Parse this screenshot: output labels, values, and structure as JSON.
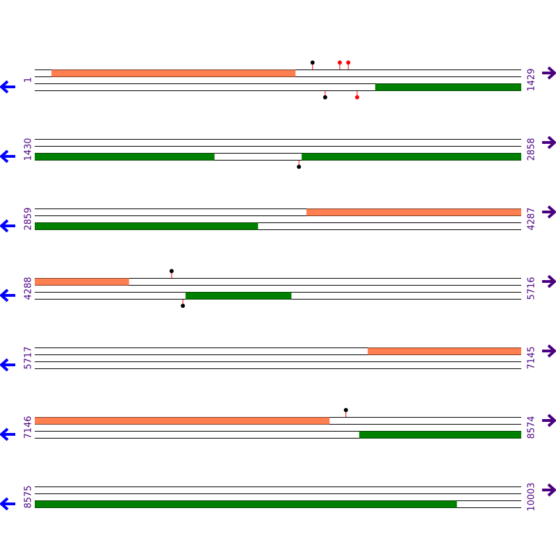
{
  "colors": {
    "forward": "#ff7f50",
    "reverse": "#008000",
    "label": "#4b0082",
    "left_arrow": "#0000ff",
    "right_arrow": "#4b0082"
  },
  "rows": [
    {
      "start": 1,
      "end": 1429,
      "forward": [
        {
          "start": 50,
          "end": 766
        }
      ],
      "reverse": [
        {
          "start": 1001,
          "end": 1429
        }
      ],
      "forward_markers": [
        {
          "pos": 817,
          "color": "#000000"
        },
        {
          "pos": 897,
          "color": "#ff0000"
        },
        {
          "pos": 922,
          "color": "#ff0000"
        }
      ],
      "reverse_markers": [
        {
          "pos": 854,
          "color": "#000000"
        },
        {
          "pos": 948,
          "color": "#ff0000"
        }
      ]
    },
    {
      "start": 1430,
      "end": 2858,
      "forward": [],
      "reverse": [
        {
          "start": 1430,
          "end": 1957
        },
        {
          "start": 2214,
          "end": 2858
        }
      ],
      "forward_markers": [],
      "reverse_markers": [
        {
          "pos": 2206,
          "color": "#000000"
        }
      ]
    },
    {
      "start": 2859,
      "end": 4287,
      "forward": [
        {
          "start": 3657,
          "end": 4287
        }
      ],
      "reverse": [
        {
          "start": 2859,
          "end": 3514
        }
      ],
      "forward_markers": [],
      "reverse_markers": []
    },
    {
      "start": 4288,
      "end": 5716,
      "forward": [
        {
          "start": 4288,
          "end": 4564
        }
      ],
      "reverse": [
        {
          "start": 4731,
          "end": 5041
        }
      ],
      "forward_markers": [
        {
          "pos": 4690,
          "color": "#000000"
        }
      ],
      "reverse_markers": [
        {
          "pos": 4723,
          "color": "#000000"
        }
      ]
    },
    {
      "start": 5717,
      "end": 7145,
      "forward": [
        {
          "start": 6695,
          "end": 7145
        }
      ],
      "reverse": [],
      "forward_markers": [],
      "reverse_markers": []
    },
    {
      "start": 7146,
      "end": 8574,
      "forward": [
        {
          "start": 7146,
          "end": 8011
        }
      ],
      "reverse": [
        {
          "start": 8099,
          "end": 8574
        }
      ],
      "forward_markers": [
        {
          "pos": 8060,
          "color": "#000000"
        }
      ],
      "reverse_markers": []
    },
    {
      "start": 8575,
      "end": 10003,
      "forward": [],
      "reverse": [
        {
          "start": 8575,
          "end": 9814
        }
      ],
      "forward_markers": [],
      "reverse_markers": []
    }
  ]
}
